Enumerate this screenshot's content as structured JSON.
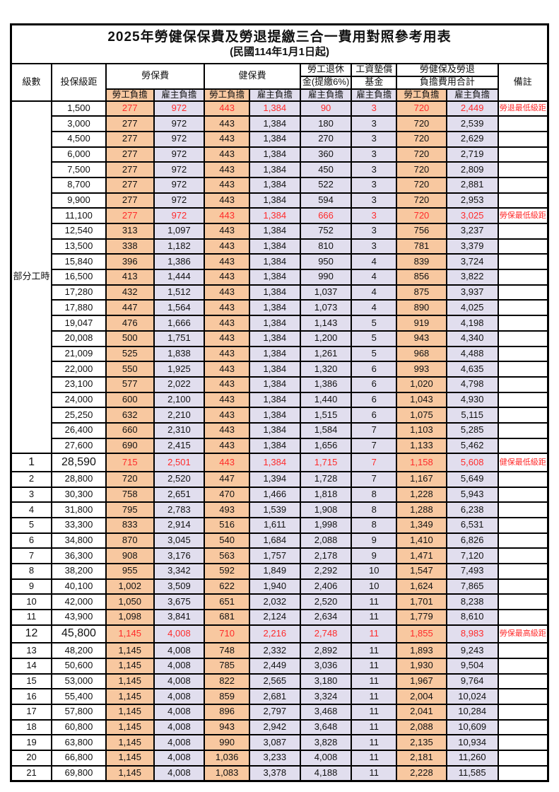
{
  "title": "2025年勞健保保費及勞退提繳三合一費用對照參考用表",
  "subtitle": "(民國114年1月1日起)",
  "colors": {
    "employee_col_bg": "#F8C8A0",
    "employer_col_bg": "#E1DEEE",
    "highlight_text": "#FF2B2B",
    "border": "#000000"
  },
  "header": {
    "level": "級數",
    "bracket": "投保級距",
    "labor_insurance": "勞保費",
    "health_insurance": "健保費",
    "pension_line1": "勞工退休",
    "pension_line2": "金(提繳6%)",
    "wage_fund_line1": "工資墊償",
    "wage_fund_line2": "基金",
    "total_line1": "勞健保及勞退",
    "total_line2": "負擔費用合計",
    "remark": "備註",
    "employee": "勞工負擔",
    "employer": "雇主負擔"
  },
  "part_time_label": "部分工時",
  "rows": [
    {
      "level": "",
      "bracket": "1,500",
      "values": [
        "277",
        "972",
        "443",
        "1,384",
        "90",
        "3",
        "720",
        "2,449"
      ],
      "remark": "勞退最低級距",
      "highlight": true,
      "big": false
    },
    {
      "level": "",
      "bracket": "3,000",
      "values": [
        "277",
        "972",
        "443",
        "1,384",
        "180",
        "3",
        "720",
        "2,539"
      ],
      "remark": "",
      "highlight": false,
      "big": false
    },
    {
      "level": "",
      "bracket": "4,500",
      "values": [
        "277",
        "972",
        "443",
        "1,384",
        "270",
        "3",
        "720",
        "2,629"
      ],
      "remark": "",
      "highlight": false,
      "big": false
    },
    {
      "level": "",
      "bracket": "6,000",
      "values": [
        "277",
        "972",
        "443",
        "1,384",
        "360",
        "3",
        "720",
        "2,719"
      ],
      "remark": "",
      "highlight": false,
      "big": false
    },
    {
      "level": "",
      "bracket": "7,500",
      "values": [
        "277",
        "972",
        "443",
        "1,384",
        "450",
        "3",
        "720",
        "2,809"
      ],
      "remark": "",
      "highlight": false,
      "big": false
    },
    {
      "level": "",
      "bracket": "8,700",
      "values": [
        "277",
        "972",
        "443",
        "1,384",
        "522",
        "3",
        "720",
        "2,881"
      ],
      "remark": "",
      "highlight": false,
      "big": false
    },
    {
      "level": "",
      "bracket": "9,900",
      "values": [
        "277",
        "972",
        "443",
        "1,384",
        "594",
        "3",
        "720",
        "2,953"
      ],
      "remark": "",
      "highlight": false,
      "big": false
    },
    {
      "level": "",
      "bracket": "11,100",
      "values": [
        "277",
        "972",
        "443",
        "1,384",
        "666",
        "3",
        "720",
        "3,025"
      ],
      "remark": "勞保最低級距",
      "highlight": true,
      "big": false
    },
    {
      "level": "",
      "bracket": "12,540",
      "values": [
        "313",
        "1,097",
        "443",
        "1,384",
        "752",
        "3",
        "756",
        "3,237"
      ],
      "remark": "",
      "highlight": false,
      "big": false
    },
    {
      "level": "",
      "bracket": "13,500",
      "values": [
        "338",
        "1,182",
        "443",
        "1,384",
        "810",
        "3",
        "781",
        "3,379"
      ],
      "remark": "",
      "highlight": false,
      "big": false
    },
    {
      "level": "",
      "bracket": "15,840",
      "values": [
        "396",
        "1,386",
        "443",
        "1,384",
        "950",
        "4",
        "839",
        "3,724"
      ],
      "remark": "",
      "highlight": false,
      "big": false
    },
    {
      "level": "",
      "bracket": "16,500",
      "values": [
        "413",
        "1,444",
        "443",
        "1,384",
        "990",
        "4",
        "856",
        "3,822"
      ],
      "remark": "",
      "highlight": false,
      "big": false
    },
    {
      "level": "",
      "bracket": "17,280",
      "values": [
        "432",
        "1,512",
        "443",
        "1,384",
        "1,037",
        "4",
        "875",
        "3,937"
      ],
      "remark": "",
      "highlight": false,
      "big": false
    },
    {
      "level": "",
      "bracket": "17,880",
      "values": [
        "447",
        "1,564",
        "443",
        "1,384",
        "1,073",
        "4",
        "890",
        "4,025"
      ],
      "remark": "",
      "highlight": false,
      "big": false
    },
    {
      "level": "",
      "bracket": "19,047",
      "values": [
        "476",
        "1,666",
        "443",
        "1,384",
        "1,143",
        "5",
        "919",
        "4,198"
      ],
      "remark": "",
      "highlight": false,
      "big": false
    },
    {
      "level": "",
      "bracket": "20,008",
      "values": [
        "500",
        "1,751",
        "443",
        "1,384",
        "1,200",
        "5",
        "943",
        "4,340"
      ],
      "remark": "",
      "highlight": false,
      "big": false
    },
    {
      "level": "",
      "bracket": "21,009",
      "values": [
        "525",
        "1,838",
        "443",
        "1,384",
        "1,261",
        "5",
        "968",
        "4,488"
      ],
      "remark": "",
      "highlight": false,
      "big": false
    },
    {
      "level": "",
      "bracket": "22,000",
      "values": [
        "550",
        "1,925",
        "443",
        "1,384",
        "1,320",
        "6",
        "993",
        "4,635"
      ],
      "remark": "",
      "highlight": false,
      "big": false
    },
    {
      "level": "",
      "bracket": "23,100",
      "values": [
        "577",
        "2,022",
        "443",
        "1,384",
        "1,386",
        "6",
        "1,020",
        "4,798"
      ],
      "remark": "",
      "highlight": false,
      "big": false
    },
    {
      "level": "",
      "bracket": "24,000",
      "values": [
        "600",
        "2,100",
        "443",
        "1,384",
        "1,440",
        "6",
        "1,043",
        "4,930"
      ],
      "remark": "",
      "highlight": false,
      "big": false
    },
    {
      "level": "",
      "bracket": "25,250",
      "values": [
        "632",
        "2,210",
        "443",
        "1,384",
        "1,515",
        "6",
        "1,075",
        "5,115"
      ],
      "remark": "",
      "highlight": false,
      "big": false
    },
    {
      "level": "",
      "bracket": "26,400",
      "values": [
        "660",
        "2,310",
        "443",
        "1,384",
        "1,584",
        "7",
        "1,103",
        "5,285"
      ],
      "remark": "",
      "highlight": false,
      "big": false
    },
    {
      "level": "",
      "bracket": "27,600",
      "values": [
        "690",
        "2,415",
        "443",
        "1,384",
        "1,656",
        "7",
        "1,133",
        "5,462"
      ],
      "remark": "",
      "highlight": false,
      "big": false
    },
    {
      "level": "1",
      "bracket": "28,590",
      "values": [
        "715",
        "2,501",
        "443",
        "1,384",
        "1,715",
        "7",
        "1,158",
        "5,608"
      ],
      "remark": "健保最低級距",
      "highlight": true,
      "big": true
    },
    {
      "level": "2",
      "bracket": "28,800",
      "values": [
        "720",
        "2,520",
        "447",
        "1,394",
        "1,728",
        "7",
        "1,167",
        "5,649"
      ],
      "remark": "",
      "highlight": false,
      "big": false
    },
    {
      "level": "3",
      "bracket": "30,300",
      "values": [
        "758",
        "2,651",
        "470",
        "1,466",
        "1,818",
        "8",
        "1,228",
        "5,943"
      ],
      "remark": "",
      "highlight": false,
      "big": false
    },
    {
      "level": "4",
      "bracket": "31,800",
      "values": [
        "795",
        "2,783",
        "493",
        "1,539",
        "1,908",
        "8",
        "1,288",
        "6,238"
      ],
      "remark": "",
      "highlight": false,
      "big": false
    },
    {
      "level": "5",
      "bracket": "33,300",
      "values": [
        "833",
        "2,914",
        "516",
        "1,611",
        "1,998",
        "8",
        "1,349",
        "6,531"
      ],
      "remark": "",
      "highlight": false,
      "big": false
    },
    {
      "level": "6",
      "bracket": "34,800",
      "values": [
        "870",
        "3,045",
        "540",
        "1,684",
        "2,088",
        "9",
        "1,410",
        "6,826"
      ],
      "remark": "",
      "highlight": false,
      "big": false
    },
    {
      "level": "7",
      "bracket": "36,300",
      "values": [
        "908",
        "3,176",
        "563",
        "1,757",
        "2,178",
        "9",
        "1,471",
        "7,120"
      ],
      "remark": "",
      "highlight": false,
      "big": false
    },
    {
      "level": "8",
      "bracket": "38,200",
      "values": [
        "955",
        "3,342",
        "592",
        "1,849",
        "2,292",
        "10",
        "1,547",
        "7,493"
      ],
      "remark": "",
      "highlight": false,
      "big": false
    },
    {
      "level": "9",
      "bracket": "40,100",
      "values": [
        "1,002",
        "3,509",
        "622",
        "1,940",
        "2,406",
        "10",
        "1,624",
        "7,865"
      ],
      "remark": "",
      "highlight": false,
      "big": false
    },
    {
      "level": "10",
      "bracket": "42,000",
      "values": [
        "1,050",
        "3,675",
        "651",
        "2,032",
        "2,520",
        "11",
        "1,701",
        "8,238"
      ],
      "remark": "",
      "highlight": false,
      "big": false
    },
    {
      "level": "11",
      "bracket": "43,900",
      "values": [
        "1,098",
        "3,841",
        "681",
        "2,124",
        "2,634",
        "11",
        "1,779",
        "8,610"
      ],
      "remark": "",
      "highlight": false,
      "big": false
    },
    {
      "level": "12",
      "bracket": "45,800",
      "values": [
        "1,145",
        "4,008",
        "710",
        "2,216",
        "2,748",
        "11",
        "1,855",
        "8,983"
      ],
      "remark": "勞保最高級距",
      "highlight": true,
      "big": true
    },
    {
      "level": "13",
      "bracket": "48,200",
      "values": [
        "1,145",
        "4,008",
        "748",
        "2,332",
        "2,892",
        "11",
        "1,893",
        "9,243"
      ],
      "remark": "",
      "highlight": false,
      "big": false
    },
    {
      "level": "14",
      "bracket": "50,600",
      "values": [
        "1,145",
        "4,008",
        "785",
        "2,449",
        "3,036",
        "11",
        "1,930",
        "9,504"
      ],
      "remark": "",
      "highlight": false,
      "big": false
    },
    {
      "level": "15",
      "bracket": "53,000",
      "values": [
        "1,145",
        "4,008",
        "822",
        "2,565",
        "3,180",
        "11",
        "1,967",
        "9,764"
      ],
      "remark": "",
      "highlight": false,
      "big": false
    },
    {
      "level": "16",
      "bracket": "55,400",
      "values": [
        "1,145",
        "4,008",
        "859",
        "2,681",
        "3,324",
        "11",
        "2,004",
        "10,024"
      ],
      "remark": "",
      "highlight": false,
      "big": false
    },
    {
      "level": "17",
      "bracket": "57,800",
      "values": [
        "1,145",
        "4,008",
        "896",
        "2,797",
        "3,468",
        "11",
        "2,041",
        "10,284"
      ],
      "remark": "",
      "highlight": false,
      "big": false
    },
    {
      "level": "18",
      "bracket": "60,800",
      "values": [
        "1,145",
        "4,008",
        "943",
        "2,942",
        "3,648",
        "11",
        "2,088",
        "10,609"
      ],
      "remark": "",
      "highlight": false,
      "big": false
    },
    {
      "level": "19",
      "bracket": "63,800",
      "values": [
        "1,145",
        "4,008",
        "990",
        "3,087",
        "3,828",
        "11",
        "2,135",
        "10,934"
      ],
      "remark": "",
      "highlight": false,
      "big": false
    },
    {
      "level": "20",
      "bracket": "66,800",
      "values": [
        "1,145",
        "4,008",
        "1,036",
        "3,233",
        "4,008",
        "11",
        "2,181",
        "11,260"
      ],
      "remark": "",
      "highlight": false,
      "big": false
    },
    {
      "level": "21",
      "bracket": "69,800",
      "values": [
        "1,145",
        "4,008",
        "1,083",
        "3,378",
        "4,188",
        "11",
        "2,228",
        "11,585"
      ],
      "remark": "",
      "highlight": false,
      "big": false
    }
  ]
}
